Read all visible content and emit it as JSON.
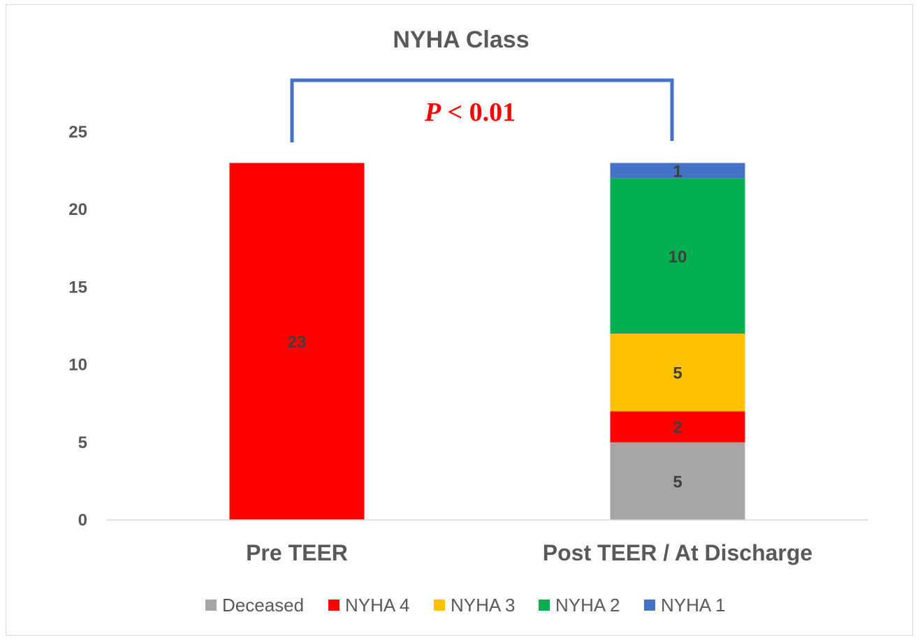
{
  "chart_data": {
    "type": "bar",
    "stacked": true,
    "title": "NYHA Class",
    "categories": [
      "Pre TEER",
      "Post TEER / At Discharge"
    ],
    "ylim": [
      0,
      25
    ],
    "yticks": [
      0,
      5,
      10,
      15,
      20,
      25
    ],
    "grid": false,
    "legend_position": "bottom",
    "series": [
      {
        "name": "Deceased",
        "color": "#a5a5a5",
        "values": [
          0,
          5
        ]
      },
      {
        "name": "NYHA 4",
        "color": "#ff0000",
        "values": [
          23,
          2
        ]
      },
      {
        "name": "NYHA 3",
        "color": "#ffc000",
        "values": [
          0,
          5
        ]
      },
      {
        "name": "NYHA 2",
        "color": "#00b050",
        "values": [
          0,
          10
        ]
      },
      {
        "name": "NYHA 1",
        "color": "#4472c4",
        "values": [
          0,
          1
        ]
      }
    ],
    "annotation": {
      "p_symbol": "P",
      "p_text": " < 0.01",
      "text_color": "#ff0000",
      "bracket_color": "#4472c4",
      "between": [
        "Pre TEER",
        "Post TEER / At Discharge"
      ]
    }
  }
}
